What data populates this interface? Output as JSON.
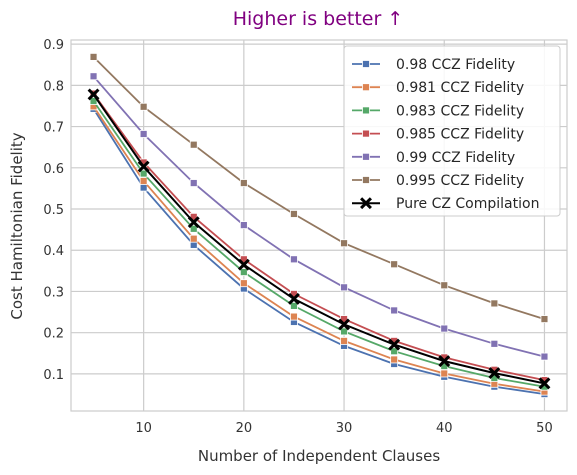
{
  "chart_data": {
    "type": "line",
    "title": "Higher is better ↑",
    "xlabel": "Number of Independent Clauses",
    "ylabel": "Cost Hamiltonian Fidelity",
    "x": [
      5,
      10,
      15,
      20,
      25,
      30,
      35,
      40,
      45,
      50
    ],
    "xlim": [
      2.75,
      52.25
    ],
    "ylim": [
      0.01,
      0.91
    ],
    "xticks": [
      10,
      20,
      30,
      40,
      50
    ],
    "yticks": [
      0.1,
      0.2,
      0.3,
      0.4,
      0.5,
      0.6,
      0.7,
      0.8,
      0.9
    ],
    "xtick_labels": [
      "10",
      "20",
      "30",
      "40",
      "50"
    ],
    "ytick_labels": [
      "0.1",
      "0.2",
      "0.3",
      "0.4",
      "0.5",
      "0.6",
      "0.7",
      "0.8",
      "0.9"
    ],
    "grid": true,
    "legend_position": "top-right",
    "series": [
      {
        "name": "0.98 CCZ Fidelity",
        "color": "#4c72b0",
        "marker": "square",
        "values": [
          0.743,
          0.552,
          0.413,
          0.307,
          0.226,
          0.168,
          0.124,
          0.093,
          0.069,
          0.051
        ]
      },
      {
        "name": "0.981 CCZ Fidelity",
        "color": "#dd8452",
        "marker": "square",
        "values": [
          0.749,
          0.568,
          0.428,
          0.32,
          0.239,
          0.18,
          0.135,
          0.101,
          0.076,
          0.057
        ]
      },
      {
        "name": "0.983 CCZ Fidelity",
        "color": "#55a868",
        "marker": "square",
        "values": [
          0.762,
          0.586,
          0.452,
          0.347,
          0.265,
          0.203,
          0.155,
          0.119,
          0.09,
          0.069
        ]
      },
      {
        "name": "0.985 CCZ Fidelity",
        "color": "#c44e52",
        "marker": "square",
        "values": [
          0.78,
          0.613,
          0.481,
          0.378,
          0.294,
          0.233,
          0.18,
          0.14,
          0.11,
          0.085
        ]
      },
      {
        "name": "0.99 CCZ Fidelity",
        "color": "#8172b3",
        "marker": "square",
        "values": [
          0.822,
          0.682,
          0.563,
          0.461,
          0.378,
          0.31,
          0.254,
          0.21,
          0.173,
          0.142
        ]
      },
      {
        "name": "0.995 CCZ Fidelity",
        "color": "#937860",
        "marker": "square",
        "values": [
          0.869,
          0.748,
          0.656,
          0.563,
          0.488,
          0.417,
          0.366,
          0.315,
          0.271,
          0.233
        ]
      },
      {
        "name": "Pure CZ Compilation",
        "color": "#000000",
        "marker": "x",
        "values": [
          0.778,
          0.603,
          0.468,
          0.365,
          0.282,
          0.22,
          0.171,
          0.131,
          0.102,
          0.077
        ]
      }
    ]
  }
}
